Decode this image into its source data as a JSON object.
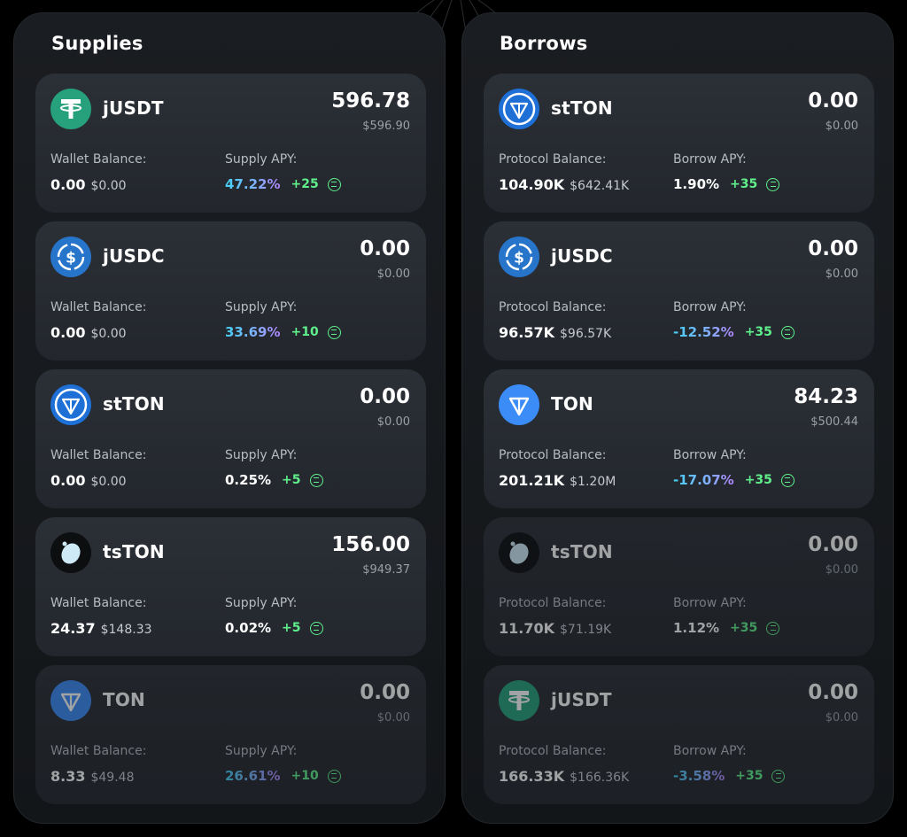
{
  "supplies": {
    "title": "Supplies",
    "balance_label": "Wallet Balance:",
    "apy_label": "Supply APY:",
    "cards": [
      {
        "token": "jUSDT",
        "icon": "tether-icon",
        "amount": "596.78",
        "amount_usd": "$596.90",
        "balance": "0.00",
        "balance_usd": "$0.00",
        "apy": "47.22%",
        "apy_gradient": true,
        "bonus": "+25",
        "dim": false
      },
      {
        "token": "jUSDC",
        "icon": "usdc-icon",
        "amount": "0.00",
        "amount_usd": "$0.00",
        "balance": "0.00",
        "balance_usd": "$0.00",
        "apy": "33.69%",
        "apy_gradient": true,
        "bonus": "+10",
        "dim": false
      },
      {
        "token": "stTON",
        "icon": "stton-icon",
        "amount": "0.00",
        "amount_usd": "$0.00",
        "balance": "0.00",
        "balance_usd": "$0.00",
        "apy": "0.25%",
        "apy_gradient": false,
        "bonus": "+5",
        "dim": false
      },
      {
        "token": "tsTON",
        "icon": "tston-icon",
        "amount": "156.00",
        "amount_usd": "$949.37",
        "balance": "24.37",
        "balance_usd": "$148.33",
        "apy": "0.02%",
        "apy_gradient": false,
        "bonus": "+5",
        "dim": false
      },
      {
        "token": "TON",
        "icon": "ton-icon",
        "amount": "0.00",
        "amount_usd": "$0.00",
        "balance": "8.33",
        "balance_usd": "$49.48",
        "apy": "26.61%",
        "apy_gradient": true,
        "bonus": "+10",
        "dim": true
      }
    ]
  },
  "borrows": {
    "title": "Borrows",
    "balance_label": "Protocol Balance:",
    "apy_label": "Borrow APY:",
    "cards": [
      {
        "token": "stTON",
        "icon": "stton-icon",
        "amount": "0.00",
        "amount_usd": "$0.00",
        "balance": "104.90K",
        "balance_usd": "$642.41K",
        "apy": "1.90%",
        "apy_gradient": false,
        "bonus": "+35",
        "dim": false
      },
      {
        "token": "jUSDC",
        "icon": "usdc-icon",
        "amount": "0.00",
        "amount_usd": "$0.00",
        "balance": "96.57K",
        "balance_usd": "$96.57K",
        "apy": "-12.52%",
        "apy_gradient": true,
        "bonus": "+35",
        "dim": false
      },
      {
        "token": "TON",
        "icon": "ton-icon",
        "amount": "84.23",
        "amount_usd": "$500.44",
        "balance": "201.21K",
        "balance_usd": "$1.20M",
        "apy": "-17.07%",
        "apy_gradient": true,
        "bonus": "+35",
        "dim": false
      },
      {
        "token": "tsTON",
        "icon": "tston-icon",
        "amount": "0.00",
        "amount_usd": "$0.00",
        "balance": "11.70K",
        "balance_usd": "$71.19K",
        "apy": "1.12%",
        "apy_gradient": false,
        "bonus": "+35",
        "dim": true
      },
      {
        "token": "jUSDT",
        "icon": "tether-icon",
        "amount": "0.00",
        "amount_usd": "$0.00",
        "balance": "166.33K",
        "balance_usd": "$166.36K",
        "apy": "-3.58%",
        "apy_gradient": true,
        "bonus": "+35",
        "dim": true
      }
    ]
  },
  "colors": {
    "tether": "#26a17b",
    "usdc": "#2775ca",
    "ton": "#0098ea",
    "bonus_green": "#5ff08c",
    "apy_gradient_start": "#45d1f5",
    "apy_gradient_end": "#b387ff"
  }
}
